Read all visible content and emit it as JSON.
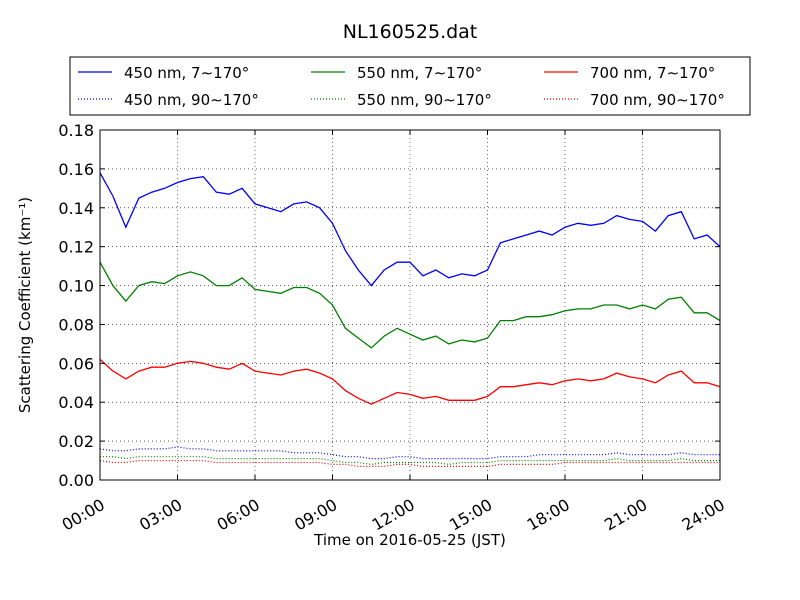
{
  "chart_data": {
    "type": "line",
    "title": "NL160525.dat",
    "xlabel": "Time on 2016-05-25 (JST)",
    "ylabel": "Scattering Coefficient (km⁻¹)",
    "xlim": [
      "00:00",
      "24:00"
    ],
    "ylim": [
      0,
      0.18
    ],
    "x_ticks": [
      "00:00",
      "03:00",
      "06:00",
      "09:00",
      "12:00",
      "15:00",
      "18:00",
      "21:00",
      "24:00"
    ],
    "y_ticks": [
      "0.00",
      "0.02",
      "0.04",
      "0.06",
      "0.08",
      "0.10",
      "0.12",
      "0.14",
      "0.16",
      "0.18"
    ],
    "grid": true,
    "legend_position": "top",
    "x": [
      "00:00",
      "00:30",
      "01:00",
      "01:30",
      "02:00",
      "02:30",
      "03:00",
      "03:30",
      "04:00",
      "04:30",
      "05:00",
      "05:30",
      "06:00",
      "06:30",
      "07:00",
      "07:30",
      "08:00",
      "08:30",
      "09:00",
      "09:30",
      "10:00",
      "10:30",
      "11:00",
      "11:30",
      "12:00",
      "12:30",
      "13:00",
      "13:30",
      "14:00",
      "14:30",
      "15:00",
      "15:30",
      "16:00",
      "16:30",
      "17:00",
      "17:30",
      "18:00",
      "18:30",
      "19:00",
      "19:30",
      "20:00",
      "20:30",
      "21:00",
      "21:30",
      "22:00",
      "22:30",
      "23:00",
      "23:30",
      "24:00"
    ],
    "series": [
      {
        "name": "450 nm, 7∼170°",
        "color": "#0000ff",
        "style": "solid",
        "values": [
          0.158,
          0.146,
          0.13,
          0.145,
          0.148,
          0.15,
          0.153,
          0.155,
          0.156,
          0.148,
          0.147,
          0.15,
          0.142,
          0.14,
          0.138,
          0.142,
          0.143,
          0.14,
          0.132,
          0.118,
          0.108,
          0.1,
          0.108,
          0.112,
          0.112,
          0.105,
          0.108,
          0.104,
          0.106,
          0.105,
          0.108,
          0.122,
          0.124,
          0.126,
          0.128,
          0.126,
          0.13,
          0.132,
          0.131,
          0.132,
          0.136,
          0.134,
          0.133,
          0.128,
          0.136,
          0.138,
          0.124,
          0.126,
          0.12
        ]
      },
      {
        "name": "450 nm, 90∼170°",
        "color": "#0000ff",
        "style": "dotted",
        "values": [
          0.016,
          0.015,
          0.015,
          0.016,
          0.016,
          0.016,
          0.017,
          0.016,
          0.016,
          0.015,
          0.015,
          0.015,
          0.015,
          0.015,
          0.015,
          0.014,
          0.014,
          0.014,
          0.013,
          0.012,
          0.012,
          0.011,
          0.011,
          0.012,
          0.012,
          0.011,
          0.011,
          0.011,
          0.011,
          0.011,
          0.011,
          0.012,
          0.012,
          0.012,
          0.013,
          0.013,
          0.013,
          0.013,
          0.013,
          0.013,
          0.014,
          0.013,
          0.013,
          0.013,
          0.013,
          0.014,
          0.013,
          0.013,
          0.013
        ]
      },
      {
        "name": "550 nm, 7∼170°",
        "color": "#008000",
        "style": "solid",
        "values": [
          0.112,
          0.1,
          0.092,
          0.1,
          0.102,
          0.101,
          0.105,
          0.107,
          0.105,
          0.1,
          0.1,
          0.104,
          0.098,
          0.097,
          0.096,
          0.099,
          0.099,
          0.096,
          0.09,
          0.078,
          0.073,
          0.068,
          0.074,
          0.078,
          0.075,
          0.072,
          0.074,
          0.07,
          0.072,
          0.071,
          0.073,
          0.082,
          0.082,
          0.084,
          0.084,
          0.085,
          0.087,
          0.088,
          0.088,
          0.09,
          0.09,
          0.088,
          0.09,
          0.088,
          0.093,
          0.094,
          0.086,
          0.086,
          0.082
        ]
      },
      {
        "name": "550 nm, 90∼170°",
        "color": "#008000",
        "style": "dotted",
        "values": [
          0.012,
          0.012,
          0.011,
          0.012,
          0.012,
          0.012,
          0.012,
          0.012,
          0.012,
          0.011,
          0.011,
          0.011,
          0.011,
          0.011,
          0.011,
          0.011,
          0.011,
          0.011,
          0.01,
          0.009,
          0.009,
          0.008,
          0.009,
          0.009,
          0.009,
          0.009,
          0.009,
          0.008,
          0.009,
          0.009,
          0.009,
          0.01,
          0.01,
          0.01,
          0.01,
          0.01,
          0.01,
          0.01,
          0.01,
          0.01,
          0.011,
          0.01,
          0.01,
          0.01,
          0.01,
          0.011,
          0.01,
          0.01,
          0.01
        ]
      },
      {
        "name": "700 nm, 7∼170°",
        "color": "#ff0000",
        "style": "solid",
        "values": [
          0.062,
          0.056,
          0.052,
          0.056,
          0.058,
          0.058,
          0.06,
          0.061,
          0.06,
          0.058,
          0.057,
          0.06,
          0.056,
          0.055,
          0.054,
          0.056,
          0.057,
          0.055,
          0.052,
          0.046,
          0.042,
          0.039,
          0.042,
          0.045,
          0.044,
          0.042,
          0.043,
          0.041,
          0.041,
          0.041,
          0.043,
          0.048,
          0.048,
          0.049,
          0.05,
          0.049,
          0.051,
          0.052,
          0.051,
          0.052,
          0.055,
          0.053,
          0.052,
          0.05,
          0.054,
          0.056,
          0.05,
          0.05,
          0.048
        ]
      },
      {
        "name": "700 nm, 90∼170°",
        "color": "#ff0000",
        "style": "dotted",
        "values": [
          0.01,
          0.009,
          0.009,
          0.01,
          0.01,
          0.01,
          0.01,
          0.01,
          0.01,
          0.009,
          0.009,
          0.009,
          0.009,
          0.009,
          0.009,
          0.009,
          0.009,
          0.009,
          0.008,
          0.008,
          0.007,
          0.007,
          0.007,
          0.008,
          0.008,
          0.007,
          0.007,
          0.007,
          0.007,
          0.007,
          0.007,
          0.008,
          0.008,
          0.008,
          0.008,
          0.008,
          0.009,
          0.009,
          0.009,
          0.009,
          0.009,
          0.009,
          0.009,
          0.009,
          0.009,
          0.009,
          0.009,
          0.009,
          0.009
        ]
      }
    ]
  }
}
